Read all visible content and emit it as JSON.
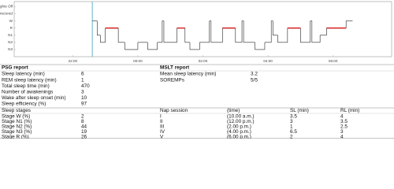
{
  "chart_data": {
    "type": "step",
    "x": [
      22.6,
      22.75,
      22.85,
      23.0,
      23.4,
      23.6,
      24.0,
      24.3,
      24.6,
      24.75,
      24.8,
      25.2,
      25.45,
      25.6,
      25.9,
      26.2,
      26.25,
      26.6,
      27.0,
      27.2,
      27.25,
      27.6,
      27.9,
      28.1,
      28.15,
      28.3,
      28.6,
      29.0,
      29.3,
      29.35,
      29.6,
      29.8,
      30.4,
      30.6
    ],
    "values": [
      4,
      2,
      1,
      3,
      1,
      0,
      1,
      0,
      1,
      4,
      1,
      3,
      1,
      0,
      1,
      4,
      1,
      3,
      1,
      4,
      1,
      0,
      1,
      4,
      2,
      1,
      3,
      1,
      4,
      1,
      2,
      3,
      4,
      4
    ],
    "color": "#222222",
    "rem_value": 3,
    "rem_color": "#d42020",
    "lights_off_x": 22.6,
    "lights_off_color": "#3aa0b8",
    "xlim": [
      20.2,
      31.8
    ],
    "ylim": [
      -1,
      6.7
    ],
    "xticks": [
      {
        "value": 22,
        "label": "22:00"
      },
      {
        "value": 24,
        "label": "00:00"
      },
      {
        "value": 26,
        "label": "02:00"
      },
      {
        "value": 28,
        "label": "04:00"
      },
      {
        "value": 30,
        "label": "06:00"
      }
    ],
    "yticks": [
      {
        "value": 6,
        "label": "Lights Off"
      },
      {
        "value": 5,
        "label": "Unscored"
      },
      {
        "value": 4,
        "label": "W"
      },
      {
        "value": 3,
        "label": "R"
      },
      {
        "value": 2,
        "label": "N1"
      },
      {
        "value": 1,
        "label": "N2"
      },
      {
        "value": 0,
        "label": "N3"
      }
    ]
  },
  "psg_report": {
    "title": "PSG report",
    "rows": [
      [
        "Sleep latency (min)",
        6
      ],
      [
        "REM sleep latency (min)",
        1
      ],
      [
        "Total sleep time (min)",
        470
      ],
      [
        "Number of awakenings",
        3
      ],
      [
        "Wake after sleep onset (min)",
        10
      ],
      [
        "Sleep efficiency (%)",
        97
      ]
    ]
  },
  "mslt_report": {
    "title": "MSLT report",
    "rows": [
      [
        "Mean sleep latency (min)",
        3.2
      ],
      [
        "SOREMPs",
        "5/5"
      ]
    ]
  },
  "sleep_stages": {
    "title": "Sleep stages",
    "rows": [
      [
        "Stage W (%)",
        2
      ],
      [
        "Stage N1 (%)",
        8
      ],
      [
        "Stage N2 (%)",
        44
      ],
      [
        "Stage N3 (%)",
        19
      ],
      [
        "Stage R (%)",
        26
      ]
    ]
  },
  "nap_table": {
    "headers": [
      "Nap session",
      "(time)",
      "SL (min)",
      "RL (min)"
    ],
    "rows": [
      [
        "I",
        "(10.00 a.m.)",
        3.5,
        4
      ],
      [
        "II",
        "(12.00 p.m.)",
        3,
        3.5
      ],
      [
        "III",
        "(2.00 p.m.)",
        1,
        2.5
      ],
      [
        "IV",
        "(4.00 p.m.)",
        6.5,
        3
      ],
      [
        "V",
        "(6.00 p.m.)",
        2,
        4
      ]
    ]
  }
}
